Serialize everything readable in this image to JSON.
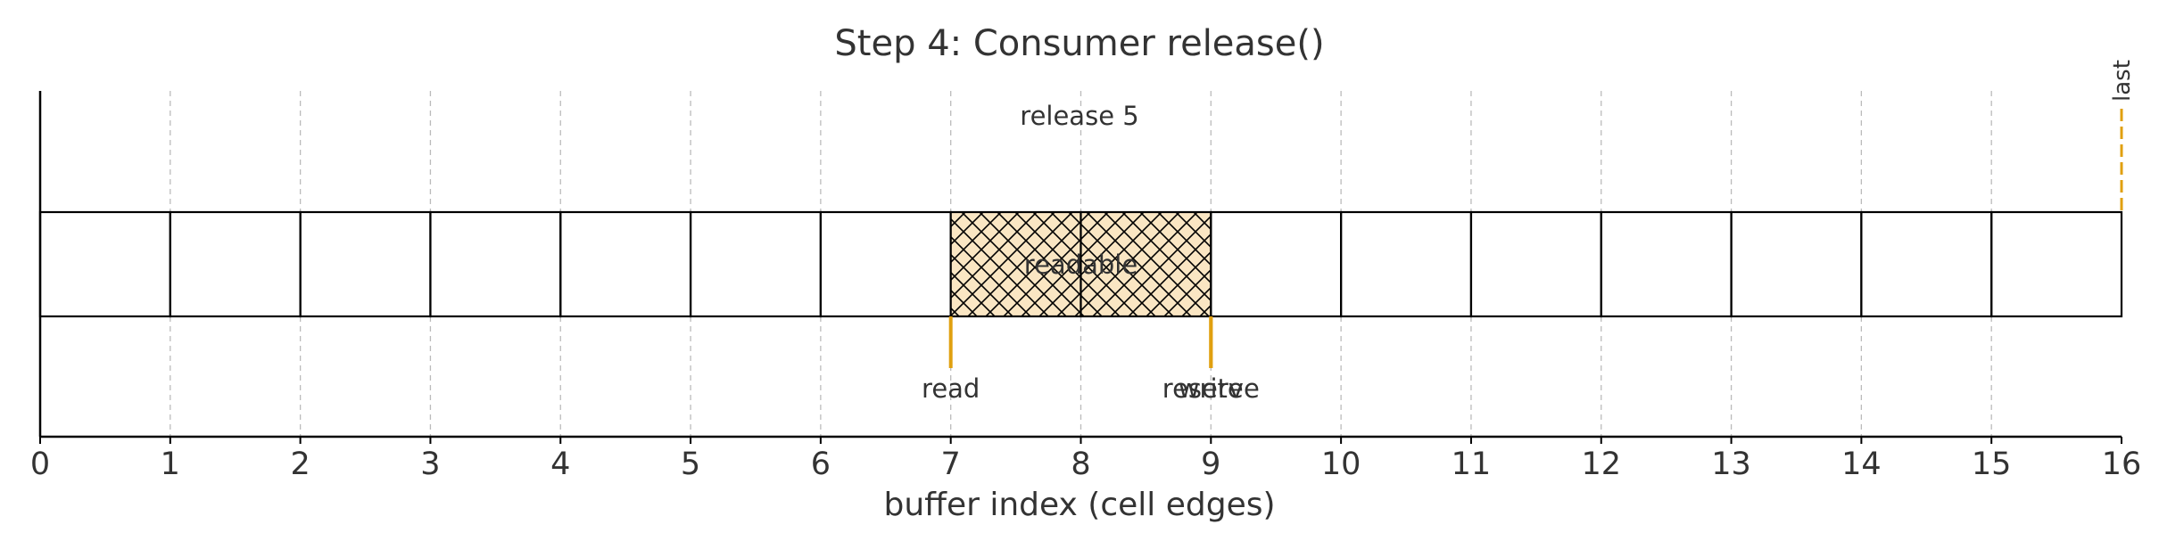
{
  "title": "Step 4: Consumer release()",
  "xlabel": "buffer index (cell edges)",
  "annotation": "release 5",
  "buffer": {
    "size": 16,
    "filled_from": 7,
    "filled_to": 9,
    "filled_label": "readable"
  },
  "pointers": [
    {
      "label": "read",
      "index": 7,
      "side": "below"
    },
    {
      "label": "reserve",
      "index": 9,
      "side": "below"
    },
    {
      "label": "write",
      "index": 9,
      "side": "below"
    },
    {
      "label": "last",
      "index": 16,
      "side": "above"
    }
  ],
  "ticks": [
    "0",
    "1",
    "2",
    "3",
    "4",
    "5",
    "6",
    "7",
    "8",
    "9",
    "10",
    "11",
    "12",
    "13",
    "14",
    "15",
    "16"
  ],
  "colors": {
    "pointer": "#E0A010",
    "fill": "#FAE6C3",
    "line": "#000000",
    "grid": "#BBBBBB"
  }
}
